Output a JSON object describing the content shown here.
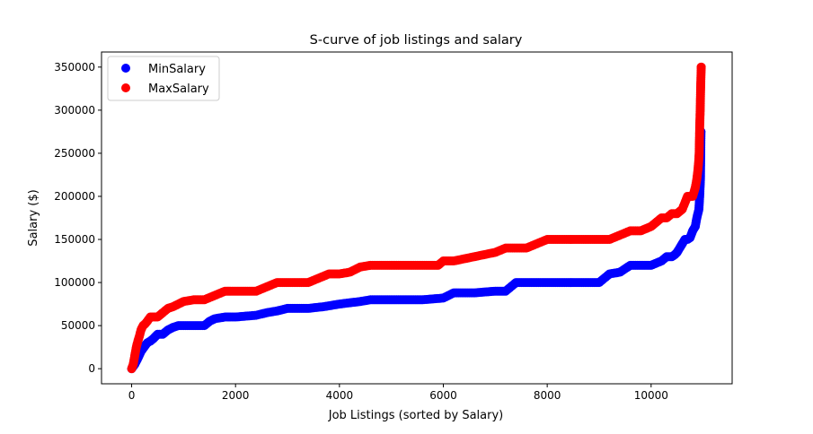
{
  "chart_data": {
    "type": "scatter",
    "title": "S-curve of job listings and salary",
    "xlabel": "Job Listings (sorted by Salary)",
    "ylabel": "Salary ($)",
    "xlim": [
      -580,
      11560
    ],
    "ylim": [
      -17500,
      367500
    ],
    "xticks": [
      0,
      2000,
      4000,
      6000,
      8000,
      10000
    ],
    "yticks": [
      0,
      50000,
      100000,
      150000,
      200000,
      250000,
      300000,
      350000
    ],
    "xtick_labels": [
      "0",
      "2000",
      "4000",
      "6000",
      "8000",
      "10000"
    ],
    "ytick_labels": [
      "0",
      "50000",
      "100000",
      "150000",
      "200000",
      "250000",
      "300000",
      "350000"
    ],
    "grid": false,
    "legend_position": "top-left",
    "series": [
      {
        "name": "MinSalary",
        "color": "#0000ff",
        "x": [
          0,
          60,
          120,
          180,
          240,
          300,
          360,
          420,
          500,
          600,
          700,
          800,
          900,
          1000,
          1200,
          1400,
          1500,
          1600,
          1800,
          2000,
          2400,
          2600,
          2800,
          3000,
          3400,
          3700,
          4000,
          4400,
          4600,
          5000,
          5600,
          6000,
          6200,
          6600,
          7000,
          7200,
          7300,
          7400,
          8000,
          8600,
          9000,
          9100,
          9200,
          9400,
          9600,
          9800,
          10000,
          10200,
          10300,
          10400,
          10450,
          10500,
          10550,
          10600,
          10650,
          10700,
          10750,
          10800,
          10850,
          10880,
          10900,
          10920,
          10935,
          10950,
          10960
        ],
        "values": [
          0,
          5000,
          12000,
          20000,
          25000,
          30000,
          32000,
          35000,
          40000,
          40000,
          45000,
          48000,
          50000,
          50000,
          50000,
          50000,
          55000,
          58000,
          60000,
          60000,
          62000,
          65000,
          67000,
          70000,
          70000,
          72000,
          75000,
          78000,
          80000,
          80000,
          80000,
          82000,
          88000,
          88000,
          90000,
          90000,
          95000,
          100000,
          100000,
          100000,
          100000,
          105000,
          110000,
          112000,
          120000,
          120000,
          120000,
          125000,
          130000,
          130000,
          132000,
          135000,
          140000,
          145000,
          150000,
          150000,
          152000,
          160000,
          165000,
          175000,
          180000,
          185000,
          200000,
          220000,
          275000
        ]
      },
      {
        "name": "MaxSalary",
        "color": "#ff0000",
        "x": [
          0,
          30,
          60,
          90,
          120,
          150,
          180,
          220,
          260,
          300,
          360,
          420,
          500,
          600,
          700,
          800,
          900,
          1000,
          1200,
          1400,
          1600,
          1800,
          2000,
          2400,
          2600,
          2800,
          3000,
          3400,
          3600,
          3800,
          4000,
          4200,
          4400,
          4600,
          5000,
          5600,
          5900,
          6000,
          6200,
          6600,
          7000,
          7200,
          7600,
          7800,
          8000,
          8600,
          9200,
          9400,
          9600,
          9800,
          10000,
          10100,
          10200,
          10300,
          10400,
          10500,
          10600,
          10700,
          10750,
          10800,
          10850,
          10880,
          10900,
          10915,
          10925,
          10935,
          10945,
          10955,
          10965
        ],
        "values": [
          0,
          5000,
          15000,
          25000,
          32000,
          38000,
          45000,
          50000,
          52000,
          55000,
          60000,
          60000,
          60000,
          65000,
          70000,
          72000,
          75000,
          78000,
          80000,
          80000,
          85000,
          90000,
          90000,
          90000,
          95000,
          100000,
          100000,
          100000,
          105000,
          110000,
          110000,
          112000,
          118000,
          120000,
          120000,
          120000,
          120000,
          125000,
          125000,
          130000,
          135000,
          140000,
          140000,
          145000,
          150000,
          150000,
          150000,
          155000,
          160000,
          160000,
          165000,
          170000,
          175000,
          175000,
          180000,
          180000,
          185000,
          200000,
          200000,
          200000,
          210000,
          220000,
          230000,
          240000,
          250000,
          280000,
          300000,
          330000,
          350000
        ]
      }
    ]
  }
}
